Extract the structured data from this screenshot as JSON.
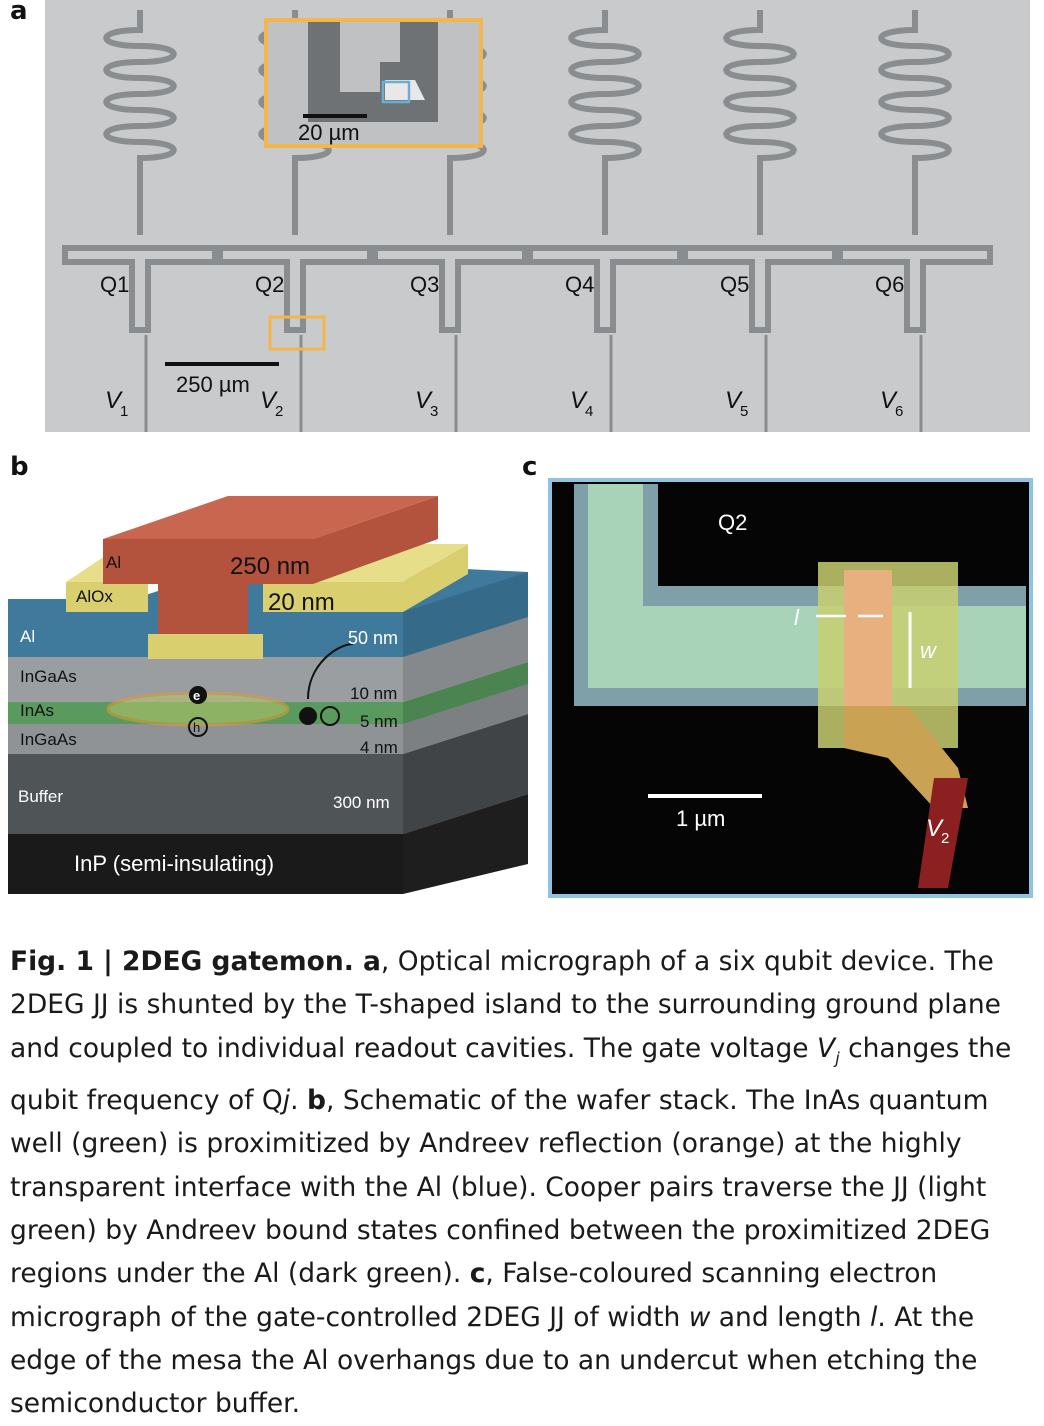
{
  "panel_labels": {
    "a": "a",
    "b": "b",
    "c": "c"
  },
  "panel_a": {
    "qubits": [
      "Q1",
      "Q2",
      "Q3",
      "Q4",
      "Q5",
      "Q6"
    ],
    "gates": [
      "V",
      "V",
      "V",
      "V",
      "V",
      "V"
    ],
    "gate_subscripts": [
      "1",
      "2",
      "3",
      "4",
      "5",
      "6"
    ],
    "scale_bar": "250 µm",
    "inset_scale_bar": "20 µm"
  },
  "panel_b": {
    "top_layer": "Al",
    "top_thickness": "250 nm",
    "oxide_layer": "AlOx",
    "oxide_thickness": "20 nm",
    "al_layer": "Al",
    "al_thickness": "50 nm",
    "ingaas_top": "InGaAs",
    "ingaas_top_thickness": "10 nm",
    "inas": "InAs",
    "inas_thickness": "5 nm",
    "ingaas_bottom": "InGaAs",
    "ingaas_bottom_thickness": "4 nm",
    "buffer": "Buffer",
    "buffer_thickness": "300 nm",
    "substrate": "InP (semi-insulating)",
    "electron": "e",
    "hole": "h"
  },
  "panel_c": {
    "qubit": "Q2",
    "length_label": "l",
    "width_label": "w",
    "scale_bar": "1 µm",
    "gate": "V",
    "gate_subscript": "2"
  },
  "caption": {
    "lines": [
      [
        {
          "t": "Fig. 1 | 2DEG gatemon. ",
          "s": "b"
        },
        {
          "t": "a",
          "s": "b"
        },
        {
          "t": ", Optical micrograph of a six qubit device. The"
        }
      ],
      [
        {
          "t": "2DEG JJ is shunted by the T-shaped island to the surrounding ground plane"
        }
      ],
      [
        {
          "t": "and coupled to individual readout cavities. The gate voltage "
        },
        {
          "t": "V",
          "s": "i"
        },
        {
          "t": "j",
          "s": "sub"
        },
        {
          "t": " changes the"
        }
      ],
      [
        {
          "t": "qubit frequency of Q"
        },
        {
          "t": "j",
          "s": "i"
        },
        {
          "t": ". "
        },
        {
          "t": "b",
          "s": "b"
        },
        {
          "t": ", Schematic of the wafer stack. The InAs quantum"
        }
      ],
      [
        {
          "t": "well (green) is proximitized by Andreev reflection (orange) at the highly"
        }
      ],
      [
        {
          "t": "transparent interface with the Al (blue). Cooper pairs traverse the JJ (light"
        }
      ],
      [
        {
          "t": "green) by Andreev bound states confined between the proximitized 2DEG"
        }
      ],
      [
        {
          "t": "regions under the Al (dark green). "
        },
        {
          "t": "c",
          "s": "b"
        },
        {
          "t": ", False-coloured scanning electron"
        }
      ],
      [
        {
          "t": "micrograph of the gate-controlled 2DEG JJ of width "
        },
        {
          "t": "w",
          "s": "i"
        },
        {
          "t": " and length "
        },
        {
          "t": "l",
          "s": "i"
        },
        {
          "t": ". At the"
        }
      ],
      [
        {
          "t": "edge of the mesa the Al overhangs due to an undercut when etching the"
        }
      ],
      [
        {
          "t": "semiconductor buffer."
        }
      ]
    ]
  },
  "colors": {
    "micrograph_bg": "#c9cbcc",
    "inset_frame": "#f2b64a",
    "aluminium_blue": "#3f7a9c",
    "oxide_yellow": "#d9cf6e",
    "top_al_red": "#b3523d",
    "inas_green": "#5b9a5e",
    "sem_frame": "#8fc4e0",
    "gate_red": "#8c2020"
  }
}
